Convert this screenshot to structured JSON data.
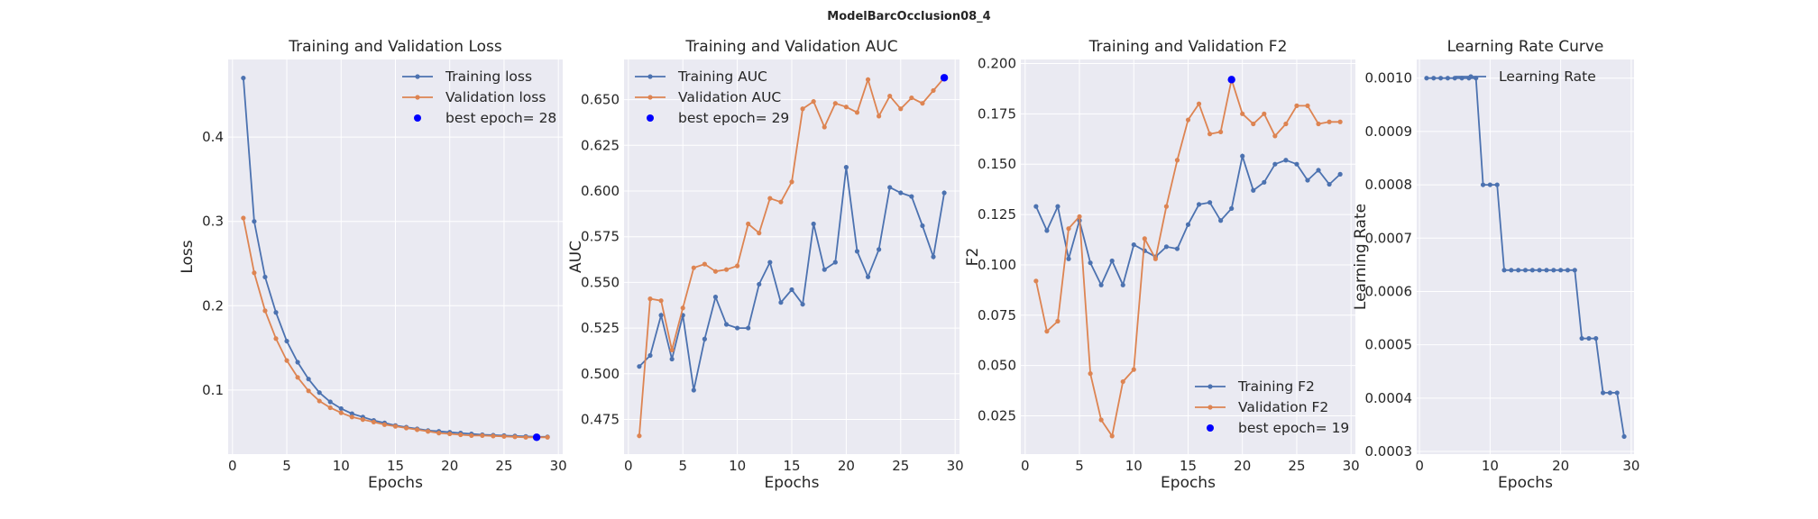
{
  "figure": {
    "suptitle": "ModelBarcOcclusion08_4"
  },
  "colors": {
    "background": "#EAEAF2",
    "grid": "#FFFFFF",
    "training": "#4C72B0",
    "validation": "#DD8452",
    "best": "#0000FF"
  },
  "chart_data": [
    {
      "type": "line",
      "title": "Training and Validation Loss",
      "xlabel": "Epochs",
      "ylabel": "Loss",
      "xlim": [
        -0.4,
        30.4
      ],
      "ylim": [
        0.024,
        0.492
      ],
      "xticks": [
        0,
        5,
        10,
        15,
        20,
        25,
        30
      ],
      "yticks": [
        0.1,
        0.2,
        0.3,
        0.4
      ],
      "ytick_decimals": 1,
      "grid": true,
      "legend": "upper right",
      "series": [
        {
          "name": "Training loss",
          "color": "#4C72B0",
          "x": [
            1,
            2,
            3,
            4,
            5,
            6,
            7,
            8,
            9,
            10,
            11,
            12,
            13,
            14,
            15,
            16,
            17,
            18,
            19,
            20,
            21,
            22,
            23,
            24,
            25,
            26,
            27,
            28,
            29
          ],
          "y": [
            0.47,
            0.3,
            0.234,
            0.192,
            0.158,
            0.133,
            0.113,
            0.097,
            0.086,
            0.078,
            0.072,
            0.068,
            0.064,
            0.061,
            0.058,
            0.056,
            0.054,
            0.052,
            0.051,
            0.05,
            0.049,
            0.048,
            0.047,
            0.0465,
            0.046,
            0.0455,
            0.045,
            0.0445,
            0.0445
          ]
        },
        {
          "name": "Validation loss",
          "color": "#DD8452",
          "x": [
            1,
            2,
            3,
            4,
            5,
            6,
            7,
            8,
            9,
            10,
            11,
            12,
            13,
            14,
            15,
            16,
            17,
            18,
            19,
            20,
            21,
            22,
            23,
            24,
            25,
            26,
            27,
            28,
            29
          ],
          "y": [
            0.304,
            0.239,
            0.194,
            0.161,
            0.135,
            0.115,
            0.099,
            0.087,
            0.079,
            0.073,
            0.068,
            0.065,
            0.062,
            0.059,
            0.057,
            0.055,
            0.053,
            0.051,
            0.049,
            0.048,
            0.047,
            0.046,
            0.046,
            0.0455,
            0.045,
            0.0445,
            0.044,
            0.044,
            0.044
          ]
        }
      ],
      "best": {
        "label": "best epoch= 28",
        "x": 28,
        "y": 0.044,
        "color": "#0000FF"
      }
    },
    {
      "type": "line",
      "title": "Training and Validation AUC",
      "xlabel": "Epochs",
      "ylabel": "AUC",
      "xlim": [
        -0.4,
        30.4
      ],
      "ylim": [
        0.456,
        0.672
      ],
      "xticks": [
        0,
        5,
        10,
        15,
        20,
        25,
        30
      ],
      "yticks": [
        0.475,
        0.5,
        0.525,
        0.55,
        0.575,
        0.6,
        0.625,
        0.65
      ],
      "ytick_decimals": 3,
      "grid": true,
      "legend": "upper left",
      "series": [
        {
          "name": "Training AUC",
          "color": "#4C72B0",
          "x": [
            1,
            2,
            3,
            4,
            5,
            6,
            7,
            8,
            9,
            10,
            11,
            12,
            13,
            14,
            15,
            16,
            17,
            18,
            19,
            20,
            21,
            22,
            23,
            24,
            25,
            26,
            27,
            28,
            29
          ],
          "y": [
            0.504,
            0.51,
            0.532,
            0.508,
            0.532,
            0.491,
            0.519,
            0.542,
            0.527,
            0.525,
            0.525,
            0.549,
            0.561,
            0.539,
            0.546,
            0.538,
            0.582,
            0.557,
            0.561,
            0.613,
            0.567,
            0.553,
            0.568,
            0.602,
            0.599,
            0.597,
            0.581,
            0.564,
            0.599
          ]
        },
        {
          "name": "Validation AUC",
          "color": "#DD8452",
          "x": [
            1,
            2,
            3,
            4,
            5,
            6,
            7,
            8,
            9,
            10,
            11,
            12,
            13,
            14,
            15,
            16,
            17,
            18,
            19,
            20,
            21,
            22,
            23,
            24,
            25,
            26,
            27,
            28,
            29
          ],
          "y": [
            0.466,
            0.541,
            0.54,
            0.513,
            0.536,
            0.558,
            0.56,
            0.556,
            0.557,
            0.559,
            0.582,
            0.577,
            0.596,
            0.594,
            0.605,
            0.645,
            0.649,
            0.635,
            0.648,
            0.646,
            0.643,
            0.661,
            0.641,
            0.652,
            0.645,
            0.651,
            0.648,
            0.655,
            0.662
          ]
        }
      ],
      "best": {
        "label": "best epoch= 29",
        "x": 29,
        "y": 0.662,
        "color": "#0000FF"
      }
    },
    {
      "type": "line",
      "title": "Training and Validation F2",
      "xlabel": "Epochs",
      "ylabel": "F2",
      "xlim": [
        -0.4,
        30.4
      ],
      "ylim": [
        0.006,
        0.202
      ],
      "xticks": [
        0,
        5,
        10,
        15,
        20,
        25,
        30
      ],
      "yticks": [
        0.025,
        0.05,
        0.075,
        0.1,
        0.125,
        0.15,
        0.175,
        0.2
      ],
      "ytick_decimals": 3,
      "grid": true,
      "legend": "lower right",
      "series": [
        {
          "name": "Training F2",
          "color": "#4C72B0",
          "x": [
            1,
            2,
            3,
            4,
            5,
            6,
            7,
            8,
            9,
            10,
            11,
            12,
            13,
            14,
            15,
            16,
            17,
            18,
            19,
            20,
            21,
            22,
            23,
            24,
            25,
            26,
            27,
            28,
            29
          ],
          "y": [
            0.129,
            0.117,
            0.129,
            0.103,
            0.122,
            0.101,
            0.09,
            0.102,
            0.09,
            0.11,
            0.107,
            0.104,
            0.109,
            0.108,
            0.12,
            0.13,
            0.131,
            0.122,
            0.128,
            0.154,
            0.137,
            0.141,
            0.15,
            0.152,
            0.15,
            0.142,
            0.147,
            0.14,
            0.145
          ]
        },
        {
          "name": "Validation F2",
          "color": "#DD8452",
          "x": [
            1,
            2,
            3,
            4,
            5,
            6,
            7,
            8,
            9,
            10,
            11,
            12,
            13,
            14,
            15,
            16,
            17,
            18,
            19,
            20,
            21,
            22,
            23,
            24,
            25,
            26,
            27,
            28,
            29
          ],
          "y": [
            0.092,
            0.067,
            0.072,
            0.118,
            0.124,
            0.046,
            0.023,
            0.015,
            0.042,
            0.048,
            0.113,
            0.103,
            0.129,
            0.152,
            0.172,
            0.18,
            0.165,
            0.166,
            0.192,
            0.175,
            0.17,
            0.175,
            0.164,
            0.17,
            0.179,
            0.179,
            0.17,
            0.171,
            0.171
          ]
        }
      ],
      "best": {
        "label": "best epoch= 19",
        "x": 19,
        "y": 0.192,
        "color": "#0000FF"
      }
    },
    {
      "type": "line",
      "title": "Learning Rate Curve",
      "xlabel": "Epochs",
      "ylabel": "Learning Rate",
      "xlim": [
        -0.4,
        30.4
      ],
      "ylim": [
        0.000295,
        0.001035
      ],
      "xticks": [
        0,
        10,
        20,
        30
      ],
      "yticks": [
        0.0003,
        0.0004,
        0.0005,
        0.0006,
        0.0007,
        0.0008,
        0.0009,
        0.001
      ],
      "ytick_decimals": 4,
      "grid": true,
      "legend": "upper center",
      "series": [
        {
          "name": "Learning Rate",
          "color": "#4C72B0",
          "x": [
            1,
            2,
            3,
            4,
            5,
            6,
            7,
            8,
            9,
            10,
            11,
            12,
            13,
            14,
            15,
            16,
            17,
            18,
            19,
            20,
            21,
            22,
            23,
            24,
            25,
            26,
            27,
            28,
            29
          ],
          "y": [
            0.001,
            0.001,
            0.001,
            0.001,
            0.001,
            0.001,
            0.001,
            0.001,
            0.0008,
            0.0008,
            0.0008,
            0.00064,
            0.00064,
            0.00064,
            0.00064,
            0.00064,
            0.00064,
            0.00064,
            0.00064,
            0.00064,
            0.00064,
            0.00064,
            0.000512,
            0.000512,
            0.000512,
            0.00041,
            0.00041,
            0.00041,
            0.000328
          ]
        }
      ]
    }
  ]
}
